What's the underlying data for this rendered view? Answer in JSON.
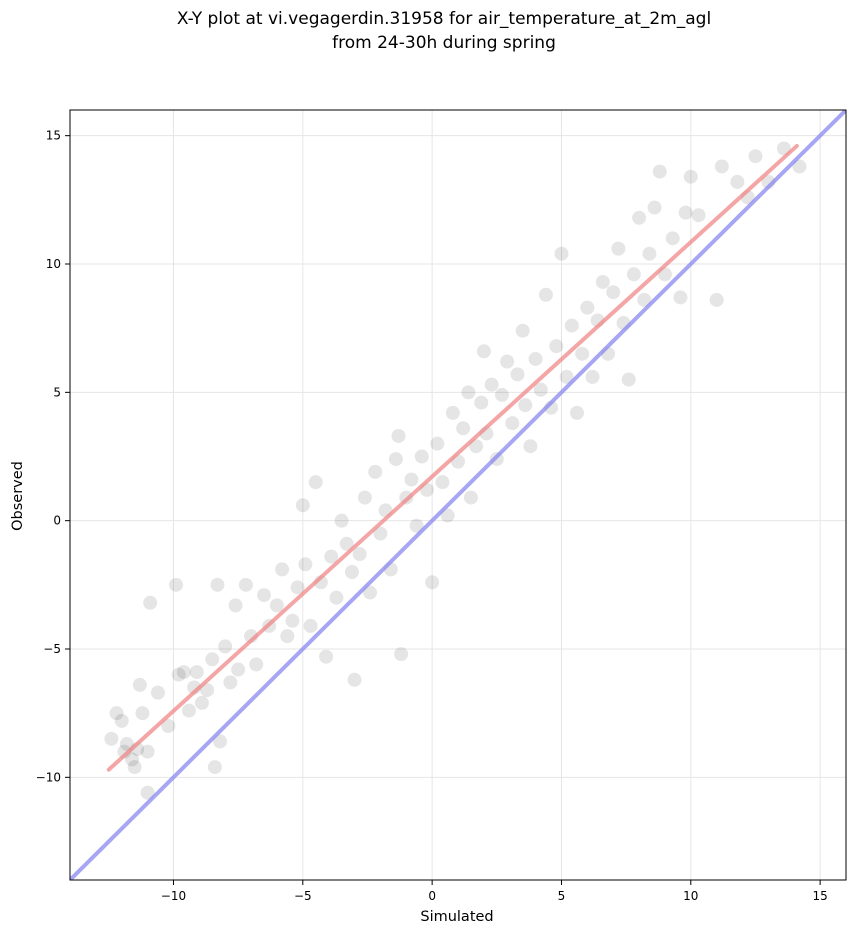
{
  "chart_data": {
    "type": "scatter",
    "title_lines": [
      "X-Y plot at vi.vegagerdin.31958 for air_temperature_at_2m_agl",
      "from 24-30h during spring"
    ],
    "xlabel": "Simulated",
    "ylabel": "Observed",
    "xlim": [
      -14,
      16
    ],
    "ylim": [
      -14,
      16
    ],
    "xticks": [
      -10,
      -5,
      0,
      5,
      10,
      15
    ],
    "xtick_labels": [
      "−10",
      "−5",
      "0",
      "5",
      "10",
      "15"
    ],
    "yticks": [
      -10,
      -5,
      0,
      5,
      10,
      15
    ],
    "ytick_labels": [
      "−10",
      "−5",
      "0",
      "5",
      "10",
      "15"
    ],
    "grid": true,
    "legend": "none",
    "colors": {
      "points": "#000000",
      "regression_line": "#f08080",
      "identity_line": "#8080f0",
      "grid": "#e6e6e6"
    },
    "lines": [
      {
        "kind": "regression",
        "x": [
          -12.5,
          14.1
        ],
        "y": [
          -9.7,
          14.6
        ]
      },
      {
        "kind": "identity_1to1",
        "x": [
          -14,
          16
        ],
        "y": [
          -14,
          16
        ]
      }
    ],
    "points_approx": [
      [
        -12.4,
        -8.5
      ],
      [
        -12.2,
        -7.5
      ],
      [
        -12.0,
        -7.8
      ],
      [
        -11.9,
        -9.0
      ],
      [
        -11.8,
        -8.7
      ],
      [
        -11.6,
        -9.3
      ],
      [
        -11.5,
        -9.6
      ],
      [
        -11.4,
        -8.9
      ],
      [
        -11.3,
        -6.4
      ],
      [
        -11.2,
        -7.5
      ],
      [
        -11.0,
        -10.6
      ],
      [
        -11.0,
        -9.0
      ],
      [
        -10.9,
        -3.2
      ],
      [
        -10.6,
        -6.7
      ],
      [
        -10.2,
        -8.0
      ],
      [
        -9.9,
        -2.5
      ],
      [
        -9.8,
        -6.0
      ],
      [
        -9.6,
        -5.9
      ],
      [
        -9.4,
        -7.4
      ],
      [
        -9.2,
        -6.5
      ],
      [
        -9.1,
        -5.9
      ],
      [
        -8.9,
        -7.1
      ],
      [
        -8.7,
        -6.6
      ],
      [
        -8.5,
        -5.4
      ],
      [
        -8.4,
        -9.6
      ],
      [
        -8.3,
        -2.5
      ],
      [
        -8.2,
        -8.6
      ],
      [
        -8.0,
        -4.9
      ],
      [
        -7.8,
        -6.3
      ],
      [
        -7.6,
        -3.3
      ],
      [
        -7.5,
        -5.8
      ],
      [
        -7.2,
        -2.5
      ],
      [
        -7.0,
        -4.5
      ],
      [
        -6.8,
        -5.6
      ],
      [
        -6.5,
        -2.9
      ],
      [
        -6.3,
        -4.1
      ],
      [
        -6.0,
        -3.3
      ],
      [
        -5.8,
        -1.9
      ],
      [
        -5.6,
        -4.5
      ],
      [
        -5.4,
        -3.9
      ],
      [
        -5.2,
        -2.6
      ],
      [
        -5.0,
        0.6
      ],
      [
        -4.9,
        -1.7
      ],
      [
        -4.7,
        -4.1
      ],
      [
        -4.5,
        1.5
      ],
      [
        -4.3,
        -2.4
      ],
      [
        -4.1,
        -5.3
      ],
      [
        -3.9,
        -1.4
      ],
      [
        -3.7,
        -3.0
      ],
      [
        -3.5,
        0.0
      ],
      [
        -3.3,
        -0.9
      ],
      [
        -3.1,
        -2.0
      ],
      [
        -3.0,
        -6.2
      ],
      [
        -2.8,
        -1.3
      ],
      [
        -2.6,
        0.9
      ],
      [
        -2.4,
        -2.8
      ],
      [
        -2.2,
        1.9
      ],
      [
        -2.0,
        -0.5
      ],
      [
        -1.8,
        0.4
      ],
      [
        -1.6,
        -1.9
      ],
      [
        -1.4,
        2.4
      ],
      [
        -1.3,
        3.3
      ],
      [
        -1.2,
        -5.2
      ],
      [
        -1.0,
        0.9
      ],
      [
        -0.8,
        1.6
      ],
      [
        -0.6,
        -0.2
      ],
      [
        -0.4,
        2.5
      ],
      [
        -0.2,
        1.2
      ],
      [
        0.0,
        -2.4
      ],
      [
        0.2,
        3.0
      ],
      [
        0.4,
        1.5
      ],
      [
        0.6,
        0.2
      ],
      [
        0.8,
        4.2
      ],
      [
        1.0,
        2.3
      ],
      [
        1.2,
        3.6
      ],
      [
        1.4,
        5.0
      ],
      [
        1.5,
        0.9
      ],
      [
        1.7,
        2.9
      ],
      [
        1.9,
        4.6
      ],
      [
        2.0,
        6.6
      ],
      [
        2.1,
        3.4
      ],
      [
        2.3,
        5.3
      ],
      [
        2.5,
        2.4
      ],
      [
        2.7,
        4.9
      ],
      [
        2.9,
        6.2
      ],
      [
        3.1,
        3.8
      ],
      [
        3.3,
        5.7
      ],
      [
        3.5,
        7.4
      ],
      [
        3.6,
        4.5
      ],
      [
        3.8,
        2.9
      ],
      [
        4.0,
        6.3
      ],
      [
        4.2,
        5.1
      ],
      [
        4.4,
        8.8
      ],
      [
        4.6,
        4.4
      ],
      [
        4.8,
        6.8
      ],
      [
        5.0,
        10.4
      ],
      [
        5.2,
        5.6
      ],
      [
        5.4,
        7.6
      ],
      [
        5.6,
        4.2
      ],
      [
        5.8,
        6.5
      ],
      [
        6.0,
        8.3
      ],
      [
        6.2,
        5.6
      ],
      [
        6.4,
        7.8
      ],
      [
        6.6,
        9.3
      ],
      [
        6.8,
        6.5
      ],
      [
        7.0,
        8.9
      ],
      [
        7.2,
        10.6
      ],
      [
        7.4,
        7.7
      ],
      [
        7.6,
        5.5
      ],
      [
        7.8,
        9.6
      ],
      [
        8.0,
        11.8
      ],
      [
        8.2,
        8.6
      ],
      [
        8.4,
        10.4
      ],
      [
        8.6,
        12.2
      ],
      [
        8.8,
        13.6
      ],
      [
        9.0,
        9.6
      ],
      [
        9.3,
        11.0
      ],
      [
        9.6,
        8.7
      ],
      [
        9.8,
        12.0
      ],
      [
        10.0,
        13.4
      ],
      [
        10.3,
        11.9
      ],
      [
        11.0,
        8.6
      ],
      [
        11.2,
        13.8
      ],
      [
        11.8,
        13.2
      ],
      [
        12.2,
        12.6
      ],
      [
        12.5,
        14.2
      ],
      [
        13.0,
        13.2
      ],
      [
        13.6,
        14.5
      ],
      [
        14.2,
        13.8
      ]
    ]
  }
}
